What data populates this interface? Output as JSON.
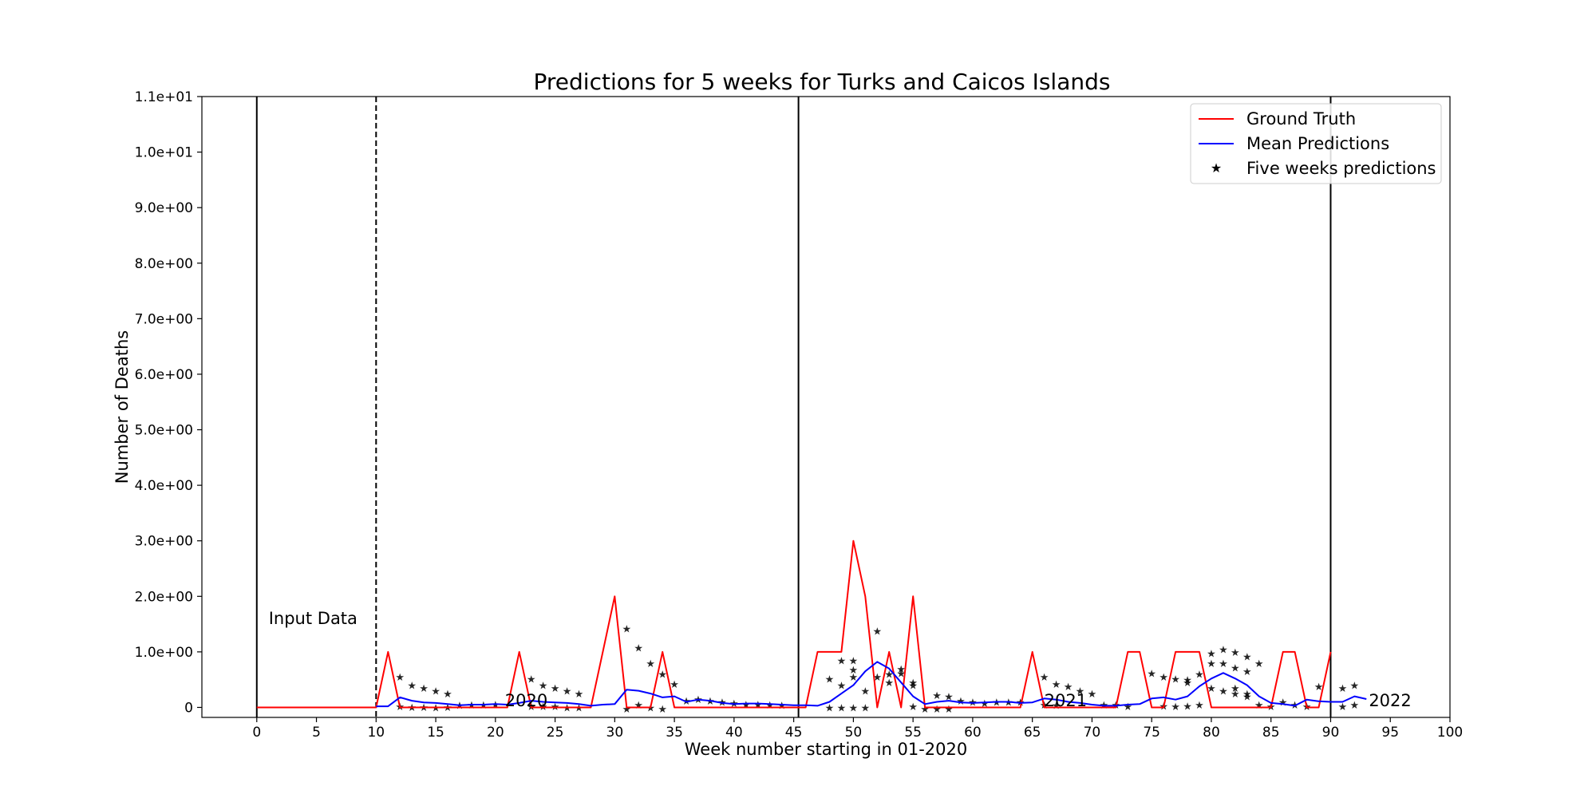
{
  "chart_data": {
    "type": "line",
    "title": "Predictions for 5 weeks for Turks and Caicos Islands",
    "xlabel": "Week number starting in 01-2020",
    "ylabel": "Number of Deaths",
    "xlim": [
      -4.6,
      100
    ],
    "ylim": [
      -0.18,
      11
    ],
    "xticks": [
      0,
      5,
      10,
      15,
      20,
      25,
      30,
      35,
      40,
      45,
      50,
      55,
      60,
      65,
      70,
      75,
      80,
      85,
      90,
      95,
      100
    ],
    "xtick_labels": [
      "0",
      "5",
      "10",
      "15",
      "20",
      "25",
      "30",
      "35",
      "40",
      "45",
      "50",
      "55",
      "60",
      "65",
      "70",
      "75",
      "80",
      "85",
      "90",
      "95",
      "100"
    ],
    "yticks": [
      0,
      1,
      2,
      3,
      4,
      5,
      6,
      7,
      8,
      9,
      10,
      11
    ],
    "ytick_labels": [
      "0",
      "1.0e+00",
      "2.0e+00",
      "3.0e+00",
      "4.0e+00",
      "5.0e+00",
      "6.0e+00",
      "7.0e+00",
      "8.0e+00",
      "9.0e+00",
      "1.0e+01",
      "1.1e+01"
    ],
    "grid": false,
    "legend_position": "top-right",
    "vertical_lines": [
      {
        "x": 0,
        "style": "solid"
      },
      {
        "x": 10,
        "style": "dashed"
      },
      {
        "x": 45.4,
        "style": "solid"
      },
      {
        "x": 90,
        "style": "solid"
      }
    ],
    "annotations": [
      {
        "text": "Input Data",
        "x": 1,
        "y": 1.5
      },
      {
        "text": "2020",
        "x": 20.8,
        "y": 0.02
      },
      {
        "text": "2021",
        "x": 66,
        "y": 0.02
      },
      {
        "text": "2022",
        "x": 93.2,
        "y": 0.02
      }
    ],
    "series": [
      {
        "name": "Ground Truth",
        "color": "#ff0000",
        "x": [
          0,
          1,
          2,
          3,
          4,
          5,
          6,
          7,
          8,
          9,
          10,
          11,
          12,
          13,
          14,
          15,
          16,
          17,
          18,
          19,
          20,
          21,
          22,
          23,
          24,
          25,
          26,
          27,
          28,
          29,
          30,
          31,
          32,
          33,
          34,
          35,
          36,
          37,
          38,
          39,
          40,
          41,
          42,
          43,
          44,
          45,
          46,
          47,
          48,
          49,
          50,
          51,
          52,
          53,
          54,
          55,
          56,
          57,
          58,
          59,
          60,
          61,
          62,
          63,
          64,
          65,
          66,
          67,
          68,
          69,
          70,
          71,
          72,
          73,
          74,
          75,
          76,
          77,
          78,
          79,
          80,
          81,
          82,
          83,
          84,
          85,
          86,
          87,
          88,
          89,
          90
        ],
        "y": [
          0,
          0,
          0,
          0,
          0,
          0,
          0,
          0,
          0,
          0,
          0,
          1,
          0,
          0,
          0,
          0,
          0,
          0,
          0,
          0,
          0,
          0,
          1,
          0,
          0,
          0,
          0,
          0,
          0,
          1,
          2,
          0,
          0,
          0,
          1,
          0,
          0,
          0,
          0,
          0,
          0,
          0,
          0,
          0,
          0,
          0,
          0,
          1,
          1,
          1,
          3,
          2,
          0,
          1,
          0,
          2,
          0,
          0,
          0,
          0,
          0,
          0,
          0,
          0,
          0,
          1,
          0,
          0,
          0,
          0,
          0,
          0,
          0,
          1,
          1,
          0,
          0,
          1,
          1,
          1,
          0,
          0,
          0,
          0,
          0,
          0,
          1,
          1,
          0,
          0,
          1
        ]
      },
      {
        "name": "Mean Predictions",
        "color": "#0000ff",
        "x": [
          10,
          11,
          12,
          13,
          14,
          15,
          16,
          17,
          18,
          19,
          20,
          21,
          22,
          23,
          24,
          25,
          26,
          27,
          28,
          29,
          30,
          31,
          32,
          33,
          34,
          35,
          36,
          37,
          38,
          39,
          40,
          41,
          42,
          43,
          44,
          45,
          46,
          47,
          48,
          49,
          50,
          51,
          52,
          53,
          54,
          55,
          56,
          57,
          58,
          59,
          60,
          61,
          62,
          63,
          64,
          65,
          66,
          67,
          68,
          69,
          70,
          71,
          72,
          73,
          74,
          75,
          76,
          77,
          78,
          79,
          80,
          81,
          82,
          83,
          84,
          85,
          86,
          87,
          88,
          89,
          90,
          91,
          92,
          93
        ],
        "y": [
          0.02,
          0.02,
          0.18,
          0.12,
          0.09,
          0.08,
          0.06,
          0.04,
          0.05,
          0.05,
          0.06,
          0.05,
          0.08,
          0.12,
          0.1,
          0.09,
          0.08,
          0.06,
          0.03,
          0.05,
          0.06,
          0.32,
          0.3,
          0.25,
          0.18,
          0.2,
          0.1,
          0.14,
          0.12,
          0.08,
          0.06,
          0.07,
          0.07,
          0.06,
          0.05,
          0.04,
          0.04,
          0.03,
          0.1,
          0.25,
          0.4,
          0.65,
          0.82,
          0.7,
          0.45,
          0.2,
          0.06,
          0.1,
          0.12,
          0.09,
          0.08,
          0.09,
          0.1,
          0.1,
          0.08,
          0.09,
          0.16,
          0.14,
          0.1,
          0.08,
          0.05,
          0.03,
          0.03,
          0.05,
          0.06,
          0.16,
          0.18,
          0.14,
          0.2,
          0.38,
          0.52,
          0.62,
          0.52,
          0.4,
          0.2,
          0.08,
          0.06,
          0.03,
          0.14,
          0.11,
          0.1,
          0.1,
          0.2,
          0.15
        ]
      },
      {
        "name": "Five weeks predictions",
        "color": "#87ceeb",
        "marker": "star",
        "points": [
          {
            "x": 12,
            "y": 0.55,
            "color": "#90ee90"
          },
          {
            "x": 13,
            "y": 0.4,
            "color": "#90ee90"
          },
          {
            "x": 14,
            "y": 0.35,
            "color": "#90ee90"
          },
          {
            "x": 15,
            "y": 0.3,
            "color": "#90ee90"
          },
          {
            "x": 16,
            "y": 0.25,
            "color": "#90ee90"
          },
          {
            "x": 12,
            "y": 0.02,
            "color": "#f4a6a6"
          },
          {
            "x": 13,
            "y": 0.01,
            "color": "#f4a6a6"
          },
          {
            "x": 14,
            "y": 0.01,
            "color": "#f4a6a6"
          },
          {
            "x": 15,
            "y": 0.0,
            "color": "#f4a6a6"
          },
          {
            "x": 16,
            "y": 0.01,
            "color": "#f4a6a6"
          },
          {
            "x": 17,
            "y": 0.04,
            "color": "#c3a6dc"
          },
          {
            "x": 18,
            "y": 0.05,
            "color": "#c3a6dc"
          },
          {
            "x": 19,
            "y": 0.05,
            "color": "#9fd3ea"
          },
          {
            "x": 20,
            "y": 0.06,
            "color": "#9fd3ea"
          },
          {
            "x": 23,
            "y": 0.52,
            "color": "#f4a6a6"
          },
          {
            "x": 24,
            "y": 0.4,
            "color": "#f4a6a6"
          },
          {
            "x": 25,
            "y": 0.35,
            "color": "#f4a6a6"
          },
          {
            "x": 26,
            "y": 0.3,
            "color": "#f4a6a6"
          },
          {
            "x": 27,
            "y": 0.25,
            "color": "#f4a6a6"
          },
          {
            "x": 23,
            "y": 0.02,
            "color": "#d9b38c"
          },
          {
            "x": 24,
            "y": 0.02,
            "color": "#d9b38c"
          },
          {
            "x": 25,
            "y": 0.02,
            "color": "#f0b6d8"
          },
          {
            "x": 26,
            "y": 0.0,
            "color": "#f0b6d8"
          },
          {
            "x": 27,
            "y": 0.0,
            "color": "#f0b6d8"
          },
          {
            "x": 31,
            "y": 1.42,
            "color": "#ffcc99"
          },
          {
            "x": 32,
            "y": 1.08,
            "color": "#ffcc99"
          },
          {
            "x": 33,
            "y": 0.8,
            "color": "#ffcc99"
          },
          {
            "x": 34,
            "y": 0.6,
            "color": "#ffcc99"
          },
          {
            "x": 35,
            "y": 0.42,
            "color": "#ffcc99"
          },
          {
            "x": 31,
            "y": -0.02,
            "color": "#b0b0b0"
          },
          {
            "x": 32,
            "y": 0.05,
            "color": "#90ee90"
          },
          {
            "x": 33,
            "y": 0.0,
            "color": "#90ee90"
          },
          {
            "x": 34,
            "y": -0.02,
            "color": "#9fd3ea"
          },
          {
            "x": 36,
            "y": 0.12,
            "color": "#c3a6dc"
          },
          {
            "x": 37,
            "y": 0.15,
            "color": "#c3a6dc"
          },
          {
            "x": 38,
            "y": 0.12,
            "color": "#c3a6dc"
          },
          {
            "x": 39,
            "y": 0.1,
            "color": "#d9b38c"
          },
          {
            "x": 40,
            "y": 0.08,
            "color": "#d9b38c"
          },
          {
            "x": 41,
            "y": 0.06,
            "color": "#9fd3ea"
          },
          {
            "x": 42,
            "y": 0.06,
            "color": "#9fd3ea"
          },
          {
            "x": 43,
            "y": 0.05,
            "color": "#9fd3ea"
          },
          {
            "x": 44,
            "y": 0.04,
            "color": "#9fd3ea"
          },
          {
            "x": 48,
            "y": 0.52,
            "color": "#e6e68a"
          },
          {
            "x": 49,
            "y": 0.4,
            "color": "#e6e68a"
          },
          {
            "x": 50,
            "y": 0.55,
            "color": "#e6e68a"
          },
          {
            "x": 51,
            "y": 0.3,
            "color": "#e6e68a"
          },
          {
            "x": 49,
            "y": 0.85,
            "color": "#9fd3ea"
          },
          {
            "x": 50,
            "y": 0.85,
            "color": "#9fd3ea"
          },
          {
            "x": 50,
            "y": 0.68,
            "color": "#9fd3ea"
          },
          {
            "x": 52,
            "y": 0.55,
            "color": "#9fd3ea"
          },
          {
            "x": 52,
            "y": 1.38,
            "color": "#b5b56a"
          },
          {
            "x": 53,
            "y": 0.6,
            "color": "#b5b56a"
          },
          {
            "x": 54,
            "y": 0.62,
            "color": "#b5b56a"
          },
          {
            "x": 55,
            "y": 0.45,
            "color": "#b5b56a"
          },
          {
            "x": 48,
            "y": 0.0,
            "color": "#c3a6dc"
          },
          {
            "x": 49,
            "y": 0.0,
            "color": "#c3a6dc"
          },
          {
            "x": 50,
            "y": 0.0,
            "color": "#c3a6dc"
          },
          {
            "x": 51,
            "y": 0.0,
            "color": "#c3a6dc"
          },
          {
            "x": 53,
            "y": 0.45,
            "color": "#d9b38c"
          },
          {
            "x": 54,
            "y": 0.7,
            "color": "#ffcc99"
          },
          {
            "x": 55,
            "y": 0.4,
            "color": "#90ee90"
          },
          {
            "x": 55,
            "y": 0.02,
            "color": "#b0b0b0"
          },
          {
            "x": 56,
            "y": -0.02,
            "color": "#f0b6d8"
          },
          {
            "x": 57,
            "y": -0.02,
            "color": "#f0b6d8"
          },
          {
            "x": 58,
            "y": -0.02,
            "color": "#f0b6d8"
          },
          {
            "x": 57,
            "y": 0.22,
            "color": "#d9b38c"
          },
          {
            "x": 58,
            "y": 0.2,
            "color": "#d9b38c"
          },
          {
            "x": 59,
            "y": 0.12,
            "color": "#d9b38c"
          },
          {
            "x": 60,
            "y": 0.1,
            "color": "#9fd3ea"
          },
          {
            "x": 61,
            "y": 0.08,
            "color": "#9fd3ea"
          },
          {
            "x": 62,
            "y": 0.1,
            "color": "#9fd3ea"
          },
          {
            "x": 63,
            "y": 0.1,
            "color": "#9fd3ea"
          },
          {
            "x": 64,
            "y": 0.1,
            "color": "#9fd3ea"
          },
          {
            "x": 66,
            "y": 0.55,
            "color": "#f0b6d8"
          },
          {
            "x": 67,
            "y": 0.42,
            "color": "#f0b6d8"
          },
          {
            "x": 68,
            "y": 0.38,
            "color": "#f0b6d8"
          },
          {
            "x": 69,
            "y": 0.3,
            "color": "#f0b6d8"
          },
          {
            "x": 70,
            "y": 0.25,
            "color": "#f0b6d8"
          },
          {
            "x": 66,
            "y": 0.05,
            "color": "#e6e68a"
          },
          {
            "x": 67,
            "y": 0.04,
            "color": "#e6e68a"
          },
          {
            "x": 71,
            "y": 0.05,
            "color": "#c3a6dc"
          },
          {
            "x": 72,
            "y": 0.05,
            "color": "#c3a6dc"
          },
          {
            "x": 73,
            "y": 0.02,
            "color": "#c3a6dc"
          },
          {
            "x": 75,
            "y": 0.62,
            "color": "#f4a6a6"
          },
          {
            "x": 76,
            "y": 0.55,
            "color": "#f4a6a6"
          },
          {
            "x": 77,
            "y": 0.52,
            "color": "#f4a6a6"
          },
          {
            "x": 78,
            "y": 0.5,
            "color": "#f4a6a6"
          },
          {
            "x": 76,
            "y": 0.03,
            "color": "#d9b38c"
          },
          {
            "x": 77,
            "y": 0.02,
            "color": "#c3a6dc"
          },
          {
            "x": 78,
            "y": 0.03,
            "color": "#c3a6dc"
          },
          {
            "x": 79,
            "y": 0.05,
            "color": "#c3a6dc"
          },
          {
            "x": 78,
            "y": 0.45,
            "color": "#b5b56a"
          },
          {
            "x": 79,
            "y": 0.6,
            "color": "#9fd3ea"
          },
          {
            "x": 80,
            "y": 0.98,
            "color": "#9fd3ea"
          },
          {
            "x": 81,
            "y": 1.05,
            "color": "#9fd3ea"
          },
          {
            "x": 82,
            "y": 1.0,
            "color": "#9fd3ea"
          },
          {
            "x": 83,
            "y": 0.92,
            "color": "#9fd3ea"
          },
          {
            "x": 84,
            "y": 0.8,
            "color": "#9fd3ea"
          },
          {
            "x": 80,
            "y": 0.8,
            "color": "#9fd3ea"
          },
          {
            "x": 81,
            "y": 0.8,
            "color": "#9fd3ea"
          },
          {
            "x": 82,
            "y": 0.72,
            "color": "#9fd3ea"
          },
          {
            "x": 83,
            "y": 0.65,
            "color": "#9fd3ea"
          },
          {
            "x": 80,
            "y": 0.35,
            "color": "#e6e68a"
          },
          {
            "x": 81,
            "y": 0.3,
            "color": "#e6e68a"
          },
          {
            "x": 82,
            "y": 0.25,
            "color": "#e6e68a"
          },
          {
            "x": 83,
            "y": 0.2,
            "color": "#e6e68a"
          },
          {
            "x": 82,
            "y": 0.35,
            "color": "#b5b56a"
          },
          {
            "x": 83,
            "y": 0.25,
            "color": "#b5b56a"
          },
          {
            "x": 84,
            "y": 0.05,
            "color": "#f0b6d8"
          },
          {
            "x": 85,
            "y": 0.02,
            "color": "#f0b6d8"
          },
          {
            "x": 86,
            "y": 0.1,
            "color": "#90ee90"
          },
          {
            "x": 87,
            "y": 0.05,
            "color": "#90ee90"
          },
          {
            "x": 88,
            "y": 0.02,
            "color": "#c3a6dc"
          },
          {
            "x": 89,
            "y": 0.38,
            "color": "#e6e68a"
          },
          {
            "x": 91,
            "y": 0.35,
            "color": "#e6e68a"
          },
          {
            "x": 92,
            "y": 0.4,
            "color": "#e6e68a"
          },
          {
            "x": 91,
            "y": 0.02,
            "color": "#9fd3ea"
          },
          {
            "x": 92,
            "y": 0.05,
            "color": "#9fd3ea"
          }
        ]
      }
    ]
  }
}
